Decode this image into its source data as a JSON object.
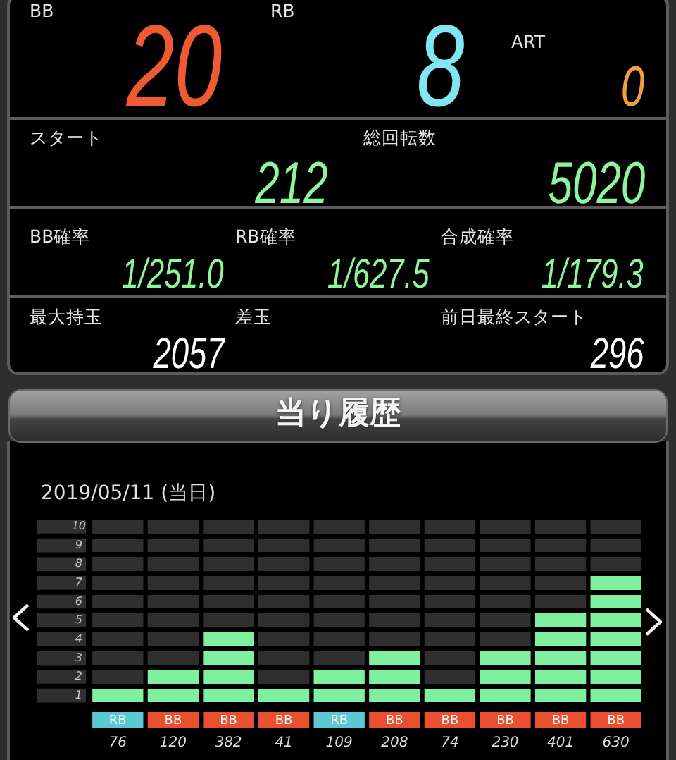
{
  "chart_data": [
    {
      "type": "other",
      "categories": [
        "BB",
        "RB",
        "ART",
        "スタート",
        "総回転数",
        "BB確率",
        "RB確率",
        "合成確率",
        "最大持玉",
        "差玉",
        "前日最終スタート"
      ],
      "value_labels": [
        "20",
        "8",
        "0",
        "212",
        "5020",
        "1/251.0",
        "1/627.5",
        "1/179.3",
        "2057",
        null,
        "296"
      ]
    },
    {
      "type": "bar",
      "title": "当り履歴",
      "subtitle": "2019/05/11 (当日)",
      "categories": [
        "76",
        "120",
        "382",
        "41",
        "109",
        "208",
        "74",
        "230",
        "401",
        "630"
      ],
      "series": [
        {
          "name": "BB",
          "color": "#7ef0a0",
          "values": [
            null,
            2,
            4,
            1,
            null,
            3,
            1,
            3,
            5,
            7
          ]
        },
        {
          "name": "RB",
          "color": "#7ef0a0",
          "values": [
            1,
            null,
            null,
            null,
            2,
            null,
            null,
            null,
            null,
            null
          ]
        },
        {
          "color": "#2f2f2f",
          "values": [
            9,
            8,
            6,
            9,
            8,
            7,
            9,
            7,
            5,
            3
          ]
        }
      ],
      "stacked": true,
      "legend": "bottom",
      "ylim": [
        0,
        10
      ],
      "yticks": [
        {
          "value": 0.5,
          "label": "1"
        },
        {
          "value": 1.5,
          "label": "2"
        },
        {
          "value": 2.5,
          "label": "3"
        },
        {
          "value": 3.5,
          "label": "4"
        },
        {
          "value": 4.5,
          "label": "5"
        },
        {
          "value": 5.5,
          "label": "6"
        },
        {
          "value": 6.5,
          "label": "7"
        },
        {
          "value": 7.5,
          "label": "8"
        },
        {
          "value": 8.5,
          "label": "9"
        },
        {
          "value": 9.5,
          "label": "10"
        }
      ]
    }
  ]
}
